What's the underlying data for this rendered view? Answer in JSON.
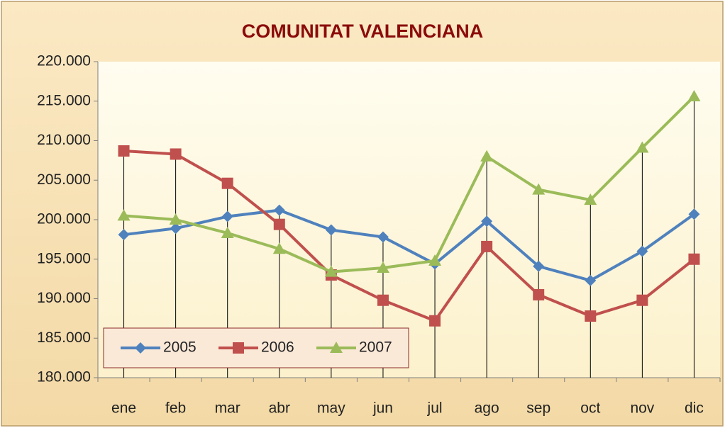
{
  "chart_data": {
    "type": "line",
    "title": "COMUNITAT VALENCIANA",
    "categories": [
      "ene",
      "feb",
      "mar",
      "abr",
      "may",
      "jun",
      "jul",
      "ago",
      "sep",
      "oct",
      "nov",
      "dic"
    ],
    "series": [
      {
        "name": "2005",
        "color": "#4f81bd",
        "marker": "diamond",
        "values": [
          198100,
          198900,
          200400,
          201200,
          198700,
          197800,
          194400,
          199800,
          194100,
          192300,
          196000,
          200700
        ]
      },
      {
        "name": "2006",
        "color": "#c0504d",
        "marker": "square",
        "values": [
          208700,
          208300,
          204600,
          199400,
          193000,
          189800,
          187200,
          196600,
          190500,
          187800,
          189800,
          195000
        ]
      },
      {
        "name": "2007",
        "color": "#9bbb59",
        "marker": "triangle",
        "values": [
          200500,
          200000,
          198300,
          196300,
          193400,
          193900,
          194800,
          208000,
          203800,
          202500,
          209100,
          215600
        ]
      }
    ],
    "ylim": [
      180000,
      220000
    ],
    "yticks": [
      {
        "value": 180000,
        "label": "180.000"
      },
      {
        "value": 185000,
        "label": "185.000"
      },
      {
        "value": 190000,
        "label": "190.000"
      },
      {
        "value": 195000,
        "label": "195.000"
      },
      {
        "value": 200000,
        "label": "200.000"
      },
      {
        "value": 205000,
        "label": "205.000"
      },
      {
        "value": 210000,
        "label": "210.000"
      },
      {
        "value": 215000,
        "label": "215.000"
      },
      {
        "value": 220000,
        "label": "220.000"
      }
    ],
    "drop_lines": true,
    "legend": "lower left"
  }
}
